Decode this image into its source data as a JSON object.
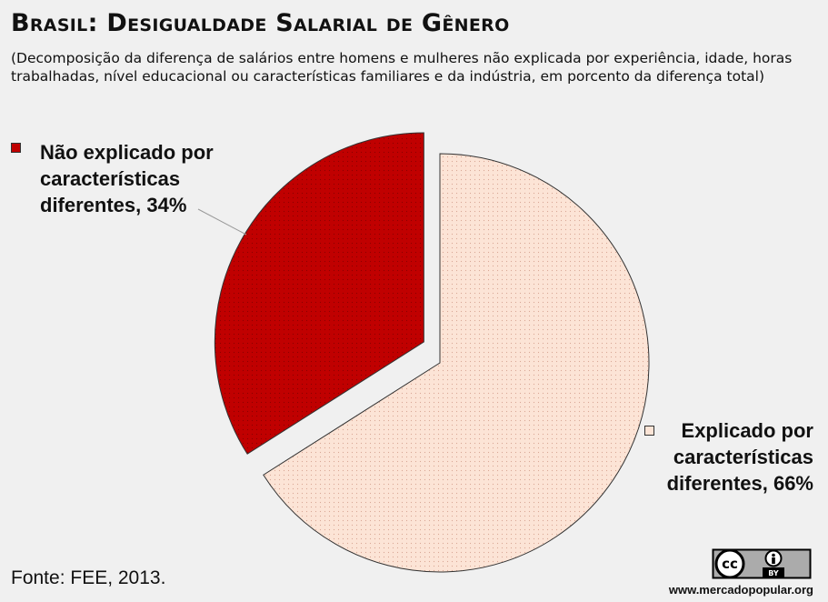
{
  "header": {
    "title": "Brasil: Desigualdade Salarial de Gênero",
    "subtitle": "(Decomposição da diferença de salários entre homens e mulheres não explicada por experiência, idade, horas trabalhadas, nível educacional ou características familiares e da indústria, em porcento da diferença total)"
  },
  "chart_data": {
    "type": "pie",
    "title": "Brasil: Desigualdade Salarial de Gênero",
    "categories": [
      "Não explicado por características diferentes",
      "Explicado por características diferentes"
    ],
    "values": [
      34,
      66
    ],
    "unit": "%",
    "labels": [
      "Não explicado por características diferentes, 34%",
      "Explicado por características diferentes, 66%"
    ],
    "colors": [
      "#c00000",
      "#fce4d6"
    ],
    "exploded": true
  },
  "footer": {
    "source": "Fonte: FEE, 2013.",
    "license_badge": "cc-by-icon",
    "license_text_cc": "cc",
    "license_text_by": "BY",
    "website": "www.mercadopopular.org"
  }
}
